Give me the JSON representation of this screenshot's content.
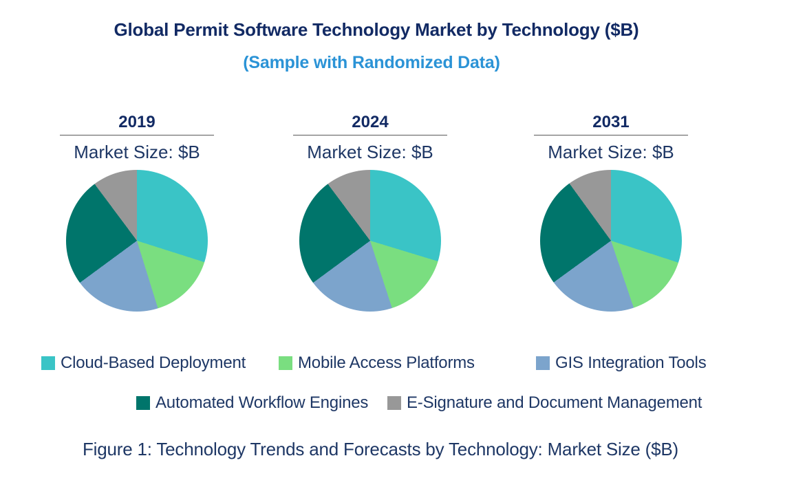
{
  "page": {
    "title": "Global Permit Software Technology Market by Technology ($B)",
    "subtitle": "(Sample with Randomized Data)",
    "caption": "Figure 1: Technology Trends and Forecasts by Technology: Market Size ($B)"
  },
  "colors": {
    "title_navy": "#122A64",
    "text_navy": "#1E3765",
    "subtitle_blue": "#2B93D6",
    "cloud_teal": "#3AC4C6",
    "mobile_green": "#7ADE80",
    "gis_blue": "#7CA4CC",
    "workflow_dark_teal": "#00756B",
    "esignature_gray": "#989898"
  },
  "legend": {
    "items": [
      {
        "label": "Cloud-Based Deployment",
        "color": "#3AC4C6"
      },
      {
        "label": "Mobile Access Platforms",
        "color": "#7ADE80"
      },
      {
        "label": "GIS Integration Tools",
        "color": "#7CA4CC"
      },
      {
        "label": "Automated Workflow Engines",
        "color": "#00756B"
      },
      {
        "label": "E-Signature and Document Management",
        "color": "#989898"
      }
    ]
  },
  "chart_data": [
    {
      "type": "pie",
      "title": "2019",
      "axis_label": "Market Size: $B",
      "labels": [
        "Cloud-Based Deployment",
        "Mobile Access Platforms",
        "GIS Integration Tools",
        "Automated Workflow Engines",
        "E-Signature and Document Management"
      ],
      "values": [
        29.9,
        15.3,
        19.7,
        24.9,
        10.2
      ],
      "value_unit": "percent share of total, estimated from slice angles (no numeric labels shown)",
      "colors": [
        "#3AC4C6",
        "#7ADE80",
        "#7CA4CC",
        "#00756B",
        "#989898"
      ],
      "start_angle_deg": 0,
      "direction": "clockwise",
      "legend_position": "bottom"
    },
    {
      "type": "pie",
      "title": "2024",
      "axis_label": "Market Size: $B",
      "labels": [
        "Cloud-Based Deployment",
        "Mobile Access Platforms",
        "GIS Integration Tools",
        "Automated Workflow Engines",
        "E-Signature and Document Management"
      ],
      "values": [
        29.7,
        15.3,
        19.9,
        24.9,
        10.2
      ],
      "value_unit": "percent share of total, estimated from slice angles (no numeric labels shown)",
      "colors": [
        "#3AC4C6",
        "#7ADE80",
        "#7CA4CC",
        "#00756B",
        "#989898"
      ],
      "start_angle_deg": 0,
      "direction": "clockwise",
      "legend_position": "bottom"
    },
    {
      "type": "pie",
      "title": "2031",
      "axis_label": "Market Size: $B",
      "labels": [
        "Cloud-Based Deployment",
        "Mobile Access Platforms",
        "GIS Integration Tools",
        "Automated Workflow Engines",
        "E-Signature and Document Management"
      ],
      "values": [
        30.0,
        14.8,
        20.2,
        25.0,
        10.0
      ],
      "value_unit": "percent share of total, estimated from slice angles (no numeric labels shown)",
      "colors": [
        "#3AC4C6",
        "#7ADE80",
        "#7CA4CC",
        "#00756B",
        "#989898"
      ],
      "start_angle_deg": 0,
      "direction": "clockwise",
      "legend_position": "bottom"
    }
  ]
}
